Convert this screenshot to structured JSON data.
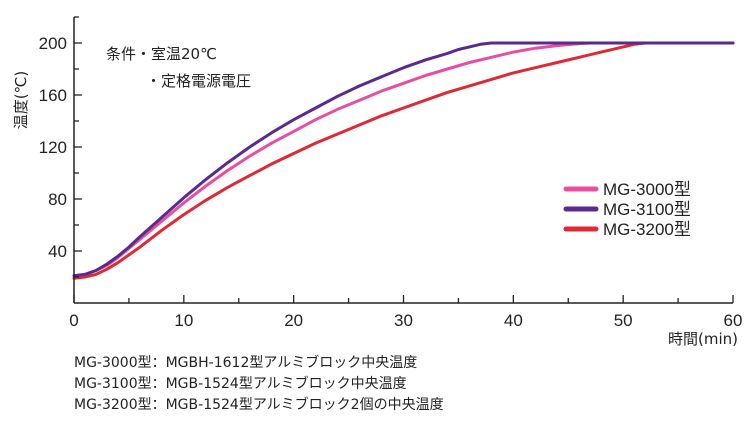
{
  "chart_data": {
    "type": "line",
    "title": "",
    "xlabel": "時間(min)",
    "ylabel": "温度(℃)",
    "xlim": [
      0,
      60
    ],
    "ylim": [
      0,
      220
    ],
    "xticks": [
      0,
      10,
      20,
      30,
      40,
      50,
      60
    ],
    "yticks": [
      40,
      80,
      120,
      160,
      200
    ],
    "grid": false,
    "legend_position": "right",
    "annotations": [
      "条件・室温20℃",
      "・定格電源電圧"
    ],
    "series": [
      {
        "name": "MG-3000型",
        "color": "#e64fa0",
        "x": [
          0,
          1,
          2,
          3,
          4,
          5,
          6,
          8,
          10,
          12,
          14,
          16,
          18,
          20,
          22,
          24,
          26,
          28,
          30,
          32,
          34,
          36,
          38,
          40,
          42,
          44,
          46,
          47,
          48,
          60
        ],
        "y": [
          21,
          22,
          25,
          29,
          35,
          42,
          49,
          63,
          77,
          90,
          102,
          113,
          123,
          132,
          141,
          149,
          156,
          163,
          169,
          175,
          180,
          185,
          189,
          193,
          196,
          198,
          199.5,
          200,
          200,
          200
        ]
      },
      {
        "name": "MG-3100型",
        "color": "#5a2a8e",
        "x": [
          0,
          1,
          2,
          3,
          4,
          5,
          6,
          8,
          10,
          12,
          14,
          16,
          18,
          20,
          22,
          24,
          26,
          28,
          30,
          32,
          34,
          35,
          36,
          37,
          38,
          39,
          40,
          60
        ],
        "y": [
          21,
          22,
          25,
          30,
          36,
          43,
          51,
          66,
          81,
          95,
          108,
          120,
          131,
          141,
          150,
          159,
          167,
          174,
          181,
          187,
          192,
          195,
          197,
          199,
          200,
          200,
          200,
          200
        ]
      },
      {
        "name": "MG-3200型",
        "color": "#dd2a34",
        "x": [
          0,
          1,
          2,
          3,
          4,
          5,
          6,
          8,
          10,
          12,
          14,
          16,
          18,
          20,
          22,
          24,
          26,
          28,
          30,
          32,
          34,
          36,
          38,
          40,
          42,
          44,
          46,
          48,
          50,
          51,
          52,
          60
        ],
        "y": [
          19,
          20,
          22,
          26,
          31,
          37,
          43,
          56,
          68,
          79,
          89,
          98,
          107,
          115,
          123,
          130,
          137,
          144,
          150,
          156,
          162,
          167,
          172,
          177,
          181,
          185,
          189,
          193,
          197,
          199,
          200,
          200
        ]
      }
    ]
  },
  "footnotes": [
    "MG-3000型：MGBH-1612型アルミブロック中央温度",
    "MG-3100型：MGB-1524型アルミブロック中央温度",
    "MG-3200型：MGB-1524型アルミブロック2個の中央温度"
  ]
}
